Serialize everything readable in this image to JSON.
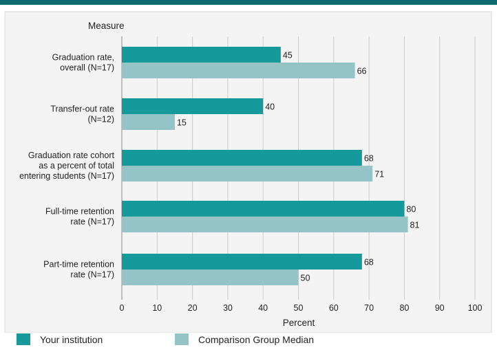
{
  "colors": {
    "institution": "#16999a",
    "comparison": "#94c4c6",
    "panel_bg": "#f4f4f4",
    "grid": "#cccccc"
  },
  "chart_data": {
    "type": "bar",
    "orientation": "horizontal",
    "yaxis_title": "Measure",
    "xlabel": "Percent",
    "xlim": [
      0,
      100
    ],
    "xticks": [
      0,
      10,
      20,
      30,
      40,
      50,
      60,
      70,
      80,
      90,
      100
    ],
    "categories": [
      [
        "Graduation rate,",
        "overall (N=17)"
      ],
      [
        "Transfer-out rate",
        "(N=12)"
      ],
      [
        "Graduation rate cohort",
        "as a percent of total",
        "entering students (N=17)"
      ],
      [
        "Full-time retention",
        "rate (N=17)"
      ],
      [
        "Part-time retention",
        "rate (N=17)"
      ]
    ],
    "series": [
      {
        "name": "Your institution",
        "values": [
          45,
          40,
          68,
          80,
          68
        ]
      },
      {
        "name": "Comparison Group Median",
        "values": [
          66,
          15,
          71,
          81,
          50
        ]
      }
    ],
    "grid": true,
    "legend": "bottom"
  }
}
